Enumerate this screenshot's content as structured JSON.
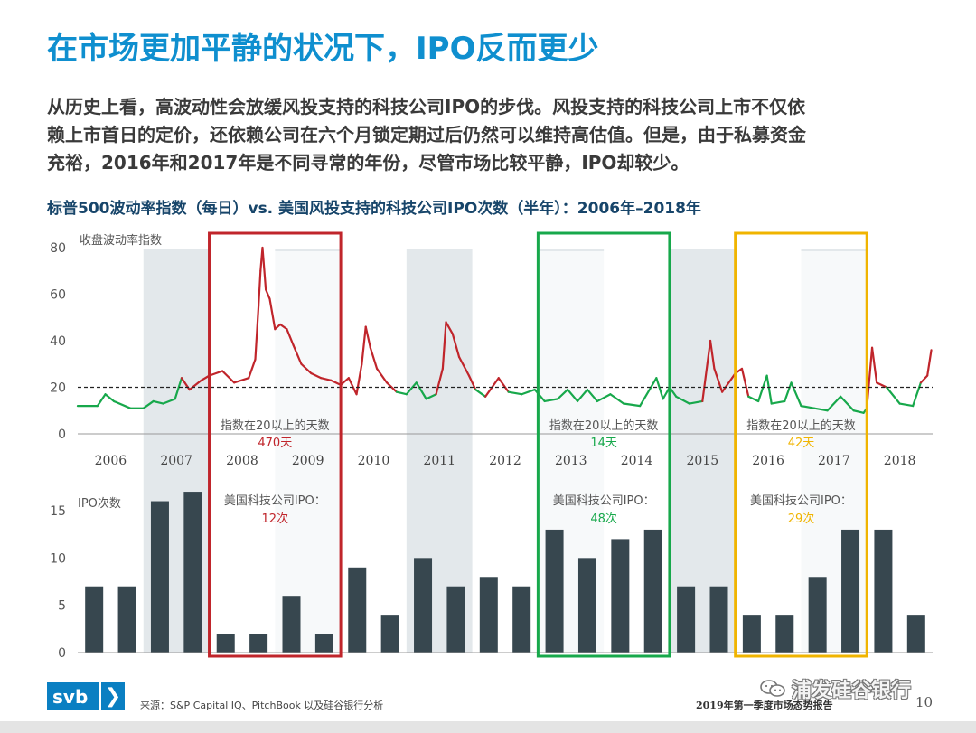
{
  "header": {
    "title": "在市场更加平静的状况下，IPO反而更少",
    "intro_lines": [
      "从历史上看，高波动性会放缓风投支持的科技公司IPO的步伐。风投支持的科技公司上市不仅依",
      "赖上市首日的定价，还依赖公司在六个月锁定期过后仍然可以维持高估值。但是，由于私募资金",
      "充裕，2016年和2017年是不同寻常的年份，尽管市场比较平静，IPO却较少。"
    ]
  },
  "chart_title": "标普500波动率指数（每日）vs. 美国风投支持的科技公司IPO次数（半年）：2006年–2018年",
  "chart_data": {
    "type": "line+bar",
    "years": [
      "2006",
      "2007",
      "2008",
      "2009",
      "2010",
      "2011",
      "2012",
      "2013",
      "2014",
      "2015",
      "2016",
      "2017",
      "2018"
    ],
    "vix": {
      "type": "line",
      "ylabel": "收盘波动率指数",
      "ylim": [
        0,
        80
      ],
      "yticks": [
        0,
        20,
        40,
        60,
        80
      ],
      "threshold": 20,
      "color_above": "#c0252b",
      "color_below": "#17a84b",
      "points": [
        [
          2006.0,
          12
        ],
        [
          2006.3,
          12
        ],
        [
          2006.42,
          17
        ],
        [
          2006.55,
          14
        ],
        [
          2006.8,
          11
        ],
        [
          2007.0,
          11
        ],
        [
          2007.15,
          14
        ],
        [
          2007.3,
          13
        ],
        [
          2007.48,
          15
        ],
        [
          2007.58,
          24
        ],
        [
          2007.7,
          19
        ],
        [
          2007.88,
          23
        ],
        [
          2008.0,
          25
        ],
        [
          2008.2,
          27
        ],
        [
          2008.38,
          22
        ],
        [
          2008.6,
          24
        ],
        [
          2008.7,
          32
        ],
        [
          2008.75,
          55
        ],
        [
          2008.78,
          70
        ],
        [
          2008.81,
          80
        ],
        [
          2008.86,
          62
        ],
        [
          2008.92,
          58
        ],
        [
          2009.0,
          45
        ],
        [
          2009.08,
          47
        ],
        [
          2009.18,
          45
        ],
        [
          2009.28,
          38
        ],
        [
          2009.4,
          30
        ],
        [
          2009.55,
          26
        ],
        [
          2009.7,
          24
        ],
        [
          2009.85,
          23
        ],
        [
          2010.0,
          21
        ],
        [
          2010.12,
          24
        ],
        [
          2010.24,
          17
        ],
        [
          2010.32,
          30
        ],
        [
          2010.38,
          46
        ],
        [
          2010.45,
          37
        ],
        [
          2010.55,
          28
        ],
        [
          2010.7,
          22
        ],
        [
          2010.85,
          18
        ],
        [
          2011.0,
          17
        ],
        [
          2011.15,
          22
        ],
        [
          2011.3,
          15
        ],
        [
          2011.45,
          17
        ],
        [
          2011.55,
          28
        ],
        [
          2011.6,
          48
        ],
        [
          2011.7,
          43
        ],
        [
          2011.8,
          33
        ],
        [
          2011.95,
          25
        ],
        [
          2012.05,
          19
        ],
        [
          2012.2,
          16
        ],
        [
          2012.4,
          24
        ],
        [
          2012.55,
          18
        ],
        [
          2012.75,
          17
        ],
        [
          2012.95,
          19
        ],
        [
          2013.1,
          14
        ],
        [
          2013.3,
          15
        ],
        [
          2013.45,
          19
        ],
        [
          2013.6,
          14
        ],
        [
          2013.75,
          19
        ],
        [
          2013.9,
          14
        ],
        [
          2014.1,
          17
        ],
        [
          2014.3,
          13
        ],
        [
          2014.55,
          12
        ],
        [
          2014.8,
          24
        ],
        [
          2014.9,
          15
        ],
        [
          2015.0,
          20
        ],
        [
          2015.1,
          16
        ],
        [
          2015.3,
          13
        ],
        [
          2015.5,
          14
        ],
        [
          2015.62,
          40
        ],
        [
          2015.68,
          28
        ],
        [
          2015.8,
          18
        ],
        [
          2015.95,
          24
        ],
        [
          2016.0,
          26
        ],
        [
          2016.1,
          28
        ],
        [
          2016.2,
          16
        ],
        [
          2016.35,
          14
        ],
        [
          2016.48,
          25
        ],
        [
          2016.55,
          13
        ],
        [
          2016.75,
          14
        ],
        [
          2016.85,
          22
        ],
        [
          2017.0,
          12
        ],
        [
          2017.2,
          11
        ],
        [
          2017.4,
          10
        ],
        [
          2017.6,
          16
        ],
        [
          2017.8,
          10
        ],
        [
          2017.95,
          9
        ],
        [
          2018.0,
          11
        ],
        [
          2018.08,
          37
        ],
        [
          2018.15,
          22
        ],
        [
          2018.3,
          20
        ],
        [
          2018.5,
          13
        ],
        [
          2018.7,
          12
        ],
        [
          2018.82,
          22
        ],
        [
          2018.92,
          25
        ],
        [
          2018.98,
          36
        ]
      ]
    },
    "ipo": {
      "type": "bar",
      "ylabel": "IPO次数",
      "ylim": [
        0,
        17
      ],
      "yticks": [
        0,
        5,
        10,
        15
      ],
      "color": "#37474f",
      "values": [
        7,
        7,
        16,
        17,
        2,
        2,
        6,
        2,
        9,
        4,
        10,
        7,
        8,
        7,
        13,
        10,
        12,
        13,
        7,
        7,
        4,
        4,
        8,
        13,
        13,
        4
      ]
    },
    "highlights": [
      {
        "color": "#c0252b",
        "days_label": "指数在20以上的天数",
        "days_value": "470天",
        "ipo_label": "美国科技公司IPO：",
        "ipo_value": "12次"
      },
      {
        "color": "#17a84b",
        "days_label": "指数在20以上的天数",
        "days_value": "14天",
        "ipo_label": "美国科技公司IPO：",
        "ipo_value": "48次"
      },
      {
        "color": "#f0b400",
        "days_label": "指数在20以上的天数",
        "days_value": "42天",
        "ipo_label": "美国科技公司IPO：",
        "ipo_value": "29次"
      }
    ]
  },
  "footer": {
    "logo_text": "svb",
    "logo_chevron": "❯",
    "source": "来源：S&P Capital IQ、PitchBook 以及硅谷银行分析",
    "report": "2019年第一季度市场态势报告",
    "page": "10",
    "watermark": "浦发硅谷银行",
    "watermark_icon": "wechat-icon"
  }
}
